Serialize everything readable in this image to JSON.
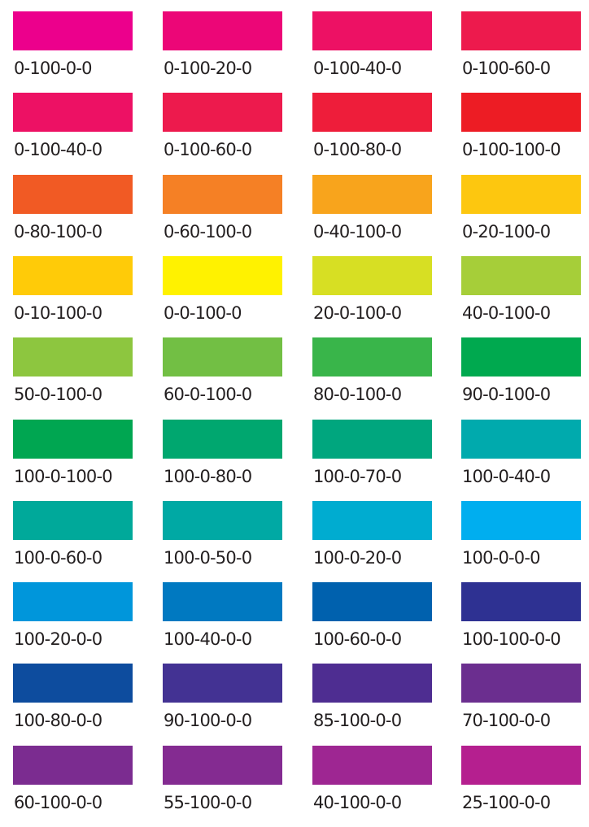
{
  "swatches": [
    {
      "label": "0-100-0-0",
      "color": "#ec008c"
    },
    {
      "label": "0-100-20-0",
      "color": "#ec0677"
    },
    {
      "label": "0-100-40-0",
      "color": "#ed1164"
    },
    {
      "label": "0-100-60-0",
      "color": "#ed1a4d"
    },
    {
      "label": "0-100-40-0",
      "color": "#ed1164"
    },
    {
      "label": "0-100-60-0",
      "color": "#ed1a4d"
    },
    {
      "label": "0-100-80-0",
      "color": "#ee1d3a"
    },
    {
      "label": "0-100-100-0",
      "color": "#ed1c24"
    },
    {
      "label": "0-80-100-0",
      "color": "#f15a24"
    },
    {
      "label": "0-60-100-0",
      "color": "#f58025"
    },
    {
      "label": "0-40-100-0",
      "color": "#f8a41c"
    },
    {
      "label": "0-20-100-0",
      "color": "#fdc70f"
    },
    {
      "label": "0-10-100-0",
      "color": "#ffcb08"
    },
    {
      "label": "0-0-100-0",
      "color": "#fff200"
    },
    {
      "label": "20-0-100-0",
      "color": "#d7df23"
    },
    {
      "label": "40-0-100-0",
      "color": "#a6ce39"
    },
    {
      "label": "50-0-100-0",
      "color": "#8dc63f"
    },
    {
      "label": "60-0-100-0",
      "color": "#72bf44"
    },
    {
      "label": "80-0-100-0",
      "color": "#39b54a"
    },
    {
      "label": "90-0-100-0",
      "color": "#00a94f"
    },
    {
      "label": "100-0-100-0",
      "color": "#00a651"
    },
    {
      "label": "100-0-80-0",
      "color": "#00a76f"
    },
    {
      "label": "100-0-70-0",
      "color": "#00a67e"
    },
    {
      "label": "100-0-40-0",
      "color": "#00aaad"
    },
    {
      "label": "100-0-60-0",
      "color": "#00a99a"
    },
    {
      "label": "100-0-50-0",
      "color": "#00a9a4"
    },
    {
      "label": "100-0-20-0",
      "color": "#00acd0"
    },
    {
      "label": "100-0-0-0",
      "color": "#00aeef"
    },
    {
      "label": "100-20-0-0",
      "color": "#0096db"
    },
    {
      "label": "100-40-0-0",
      "color": "#0079c1"
    },
    {
      "label": "100-60-0-0",
      "color": "#0061ae"
    },
    {
      "label": "100-100-0-0",
      "color": "#2e3192"
    },
    {
      "label": "100-80-0-0",
      "color": "#0d4c9e"
    },
    {
      "label": "90-100-0-0",
      "color": "#433293"
    },
    {
      "label": "85-100-0-0",
      "color": "#4e2d91"
    },
    {
      "label": "70-100-0-0",
      "color": "#6b2e8f"
    },
    {
      "label": "60-100-0-0",
      "color": "#7b2c90"
    },
    {
      "label": "55-100-0-0",
      "color": "#842b91"
    },
    {
      "label": "40-100-0-0",
      "color": "#9e2692"
    },
    {
      "label": "25-100-0-0",
      "color": "#b51f8f"
    }
  ]
}
